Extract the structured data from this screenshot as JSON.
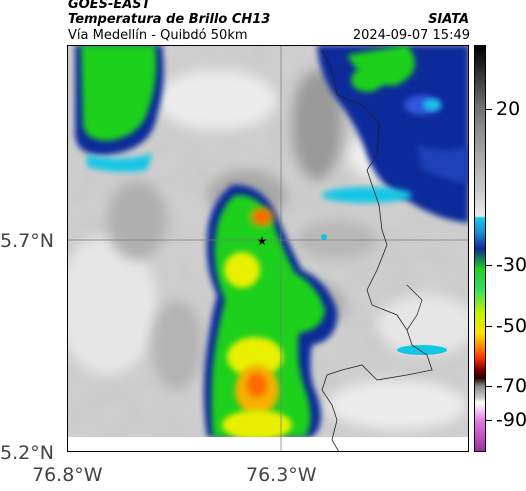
{
  "header": {
    "satellite": "GOES-EAST",
    "product": "Temperatura de Brillo CH13",
    "route": "Vía Medellín - Quibdó 50km",
    "agency": "SIATA",
    "timestamp": "2024-09-07 15:49"
  },
  "axes": {
    "lat_ticks": [
      "5.7°N",
      "5.2°N"
    ],
    "lon_ticks": [
      "76.8°W",
      "76.3°W"
    ]
  },
  "colorbar": {
    "unit_hint": "",
    "ticks": [
      "20",
      "-30",
      "-50",
      "-70",
      "-90"
    ]
  },
  "marker": {
    "symbol": "★"
  },
  "colors": {
    "cold_top": "#ff3300",
    "yellow": "#e8f000",
    "green": "#1fd01f",
    "blue": "#0a2a9a",
    "cyan": "#12c6e6",
    "gray_light": "#d6d6d6",
    "gray_mid": "#a8a8a8",
    "border": "#000000"
  }
}
